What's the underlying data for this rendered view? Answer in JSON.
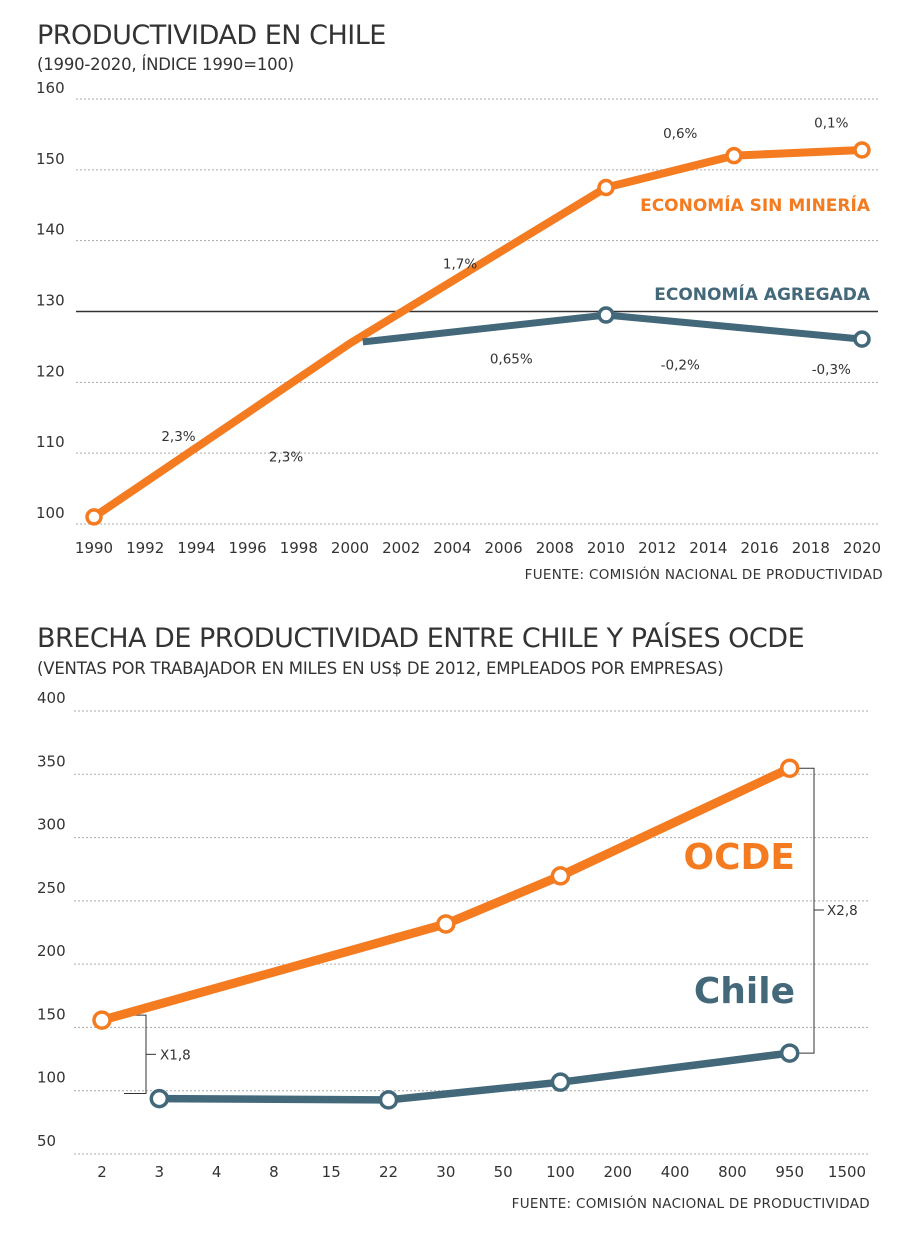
{
  "colors": {
    "orange": "#f47b20",
    "slate": "#43687a",
    "text": "#333333"
  },
  "charts": [
    {
      "title": "PRODUCTIVIDAD EN CHILE",
      "subtitle": "(1990-2020, ÍNDICE 1990=100)",
      "source": "FUENTE: COMISIÓN NACIONAL DE PRODUCTIVIDAD"
    },
    {
      "title": "BRECHA DE PRODUCTIVIDAD ENTRE CHILE Y PAÍSES OCDE",
      "subtitle": "(VENTAS POR TRABAJADOR EN MILES EN US$ DE 2012, EMPLEADOS POR EMPRESAS)",
      "source": "FUENTE: COMISIÓN NACIONAL DE PRODUCTIVIDAD"
    }
  ],
  "chart_data": [
    {
      "type": "line",
      "title": "PRODUCTIVIDAD EN CHILE",
      "subtitle": "(1990-2020, ÍNDICE 1990=100)",
      "xlabel": "",
      "ylabel": "",
      "xlim": [
        1990,
        2020
      ],
      "ylim": [
        100,
        160
      ],
      "x_ticks": [
        "1990",
        "1992",
        "1994",
        "1996",
        "1998",
        "2000",
        "2002",
        "2004",
        "2006",
        "2008",
        "2010",
        "2012",
        "2014",
        "2016",
        "2018",
        "2020"
      ],
      "y_ticks": [
        "100",
        "110",
        "120",
        "130",
        "140",
        "150",
        "160"
      ],
      "reference_line": 130,
      "grid": true,
      "series": [
        {
          "name": "ECONOMÍA SIN MINERÍA",
          "color": "#f47b20",
          "points": [
            [
              1990,
              101
            ],
            [
              2000,
              125.5
            ],
            [
              2010,
              147.5
            ],
            [
              2015,
              152
            ],
            [
              2020,
              152.8
            ]
          ],
          "markers": [
            [
              1990,
              101
            ],
            [
              2010,
              147.5
            ],
            [
              2015,
              152
            ],
            [
              2020,
              152.8
            ]
          ]
        },
        {
          "name": "ECONOMÍA AGREGADA",
          "color": "#43687a",
          "points": [
            [
              2000.5,
              125.7
            ],
            [
              2010,
              129.5
            ],
            [
              2020,
              126.1
            ]
          ],
          "markers": [
            [
              2010,
              129.5
            ],
            [
              2020,
              126.1
            ]
          ]
        }
      ],
      "annotations": [
        {
          "text": "2,3%",
          "x": 1993.3,
          "y": 112.4
        },
        {
          "text": "2,3%",
          "x": 1997.5,
          "y": 109.5
        },
        {
          "text": "1,7%",
          "x": 2004.3,
          "y": 136.8
        },
        {
          "text": "0,65%",
          "x": 2006.3,
          "y": 123.4
        },
        {
          "text": "0,6%",
          "x": 2012.9,
          "y": 155.2
        },
        {
          "text": "-0,2%",
          "x": 2012.9,
          "y": 122.5
        },
        {
          "text": "0,1%",
          "x": 2018.8,
          "y": 156.7
        },
        {
          "text": "-0,3%",
          "x": 2018.8,
          "y": 121.9
        }
      ]
    },
    {
      "type": "line",
      "title": "BRECHA DE PRODUCTIVIDAD ENTRE CHILE Y PAÍSES OCDE",
      "subtitle": "(VENTAS POR TRABAJADOR EN MILES EN US$ DE 2012, EMPLEADOS POR EMPRESAS)",
      "xlabel": "",
      "ylabel": "",
      "categories": [
        "2",
        "3",
        "4",
        "8",
        "15",
        "22",
        "30",
        "50",
        "100",
        "200",
        "400",
        "800",
        "950",
        "1500"
      ],
      "ylim": [
        50,
        400
      ],
      "y_ticks": [
        "50",
        "100",
        "150",
        "200",
        "250",
        "300",
        "350",
        "400"
      ],
      "grid": true,
      "series": [
        {
          "name": "OCDE",
          "color": "#f47b20",
          "points": [
            [
              "2",
              151
            ],
            [
              "30",
              227
            ],
            [
              "100",
              265
            ],
            [
              "950",
              350
            ]
          ]
        },
        {
          "name": "Chile",
          "color": "#43687a",
          "points": [
            [
              "3",
              89
            ],
            [
              "22",
              88
            ],
            [
              "100",
              102
            ],
            [
              "950",
              125
            ]
          ]
        }
      ],
      "annotations": [
        {
          "text": "X1,8",
          "from": [
            151,
            97
          ],
          "at": "2"
        },
        {
          "text": "X2,8",
          "from": [
            350,
            125
          ],
          "at": "950"
        }
      ]
    }
  ]
}
